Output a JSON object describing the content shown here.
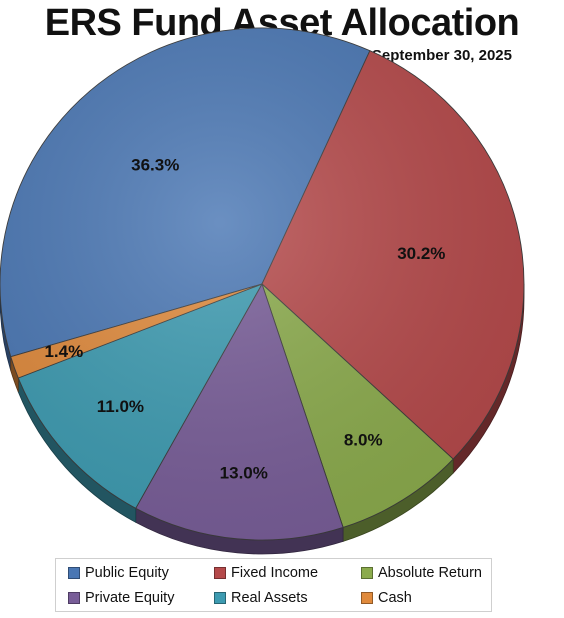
{
  "chart_data": {
    "type": "pie",
    "title": "ERS Fund Asset Allocation",
    "subtitle": "September 30, 2025",
    "slices": [
      {
        "name": "Public Equity",
        "value": 36.3,
        "label": "36.3%",
        "color": "#4a77b4"
      },
      {
        "name": "Fixed Income",
        "value": 30.2,
        "label": "30.2%",
        "color": "#b5494a"
      },
      {
        "name": "Absolute Return",
        "value": 8.0,
        "label": "8.0%",
        "color": "#8bab4c"
      },
      {
        "name": "Private Equity",
        "value": 13.0,
        "label": "13.0%",
        "color": "#785d98"
      },
      {
        "name": "Real Assets",
        "value": 11.0,
        "label": "11.0%",
        "color": "#3d9bb1"
      },
      {
        "name": "Cash",
        "value": 1.4,
        "label": "1.4%",
        "color": "#e08a3c"
      }
    ],
    "legend_placement": "bottom"
  }
}
